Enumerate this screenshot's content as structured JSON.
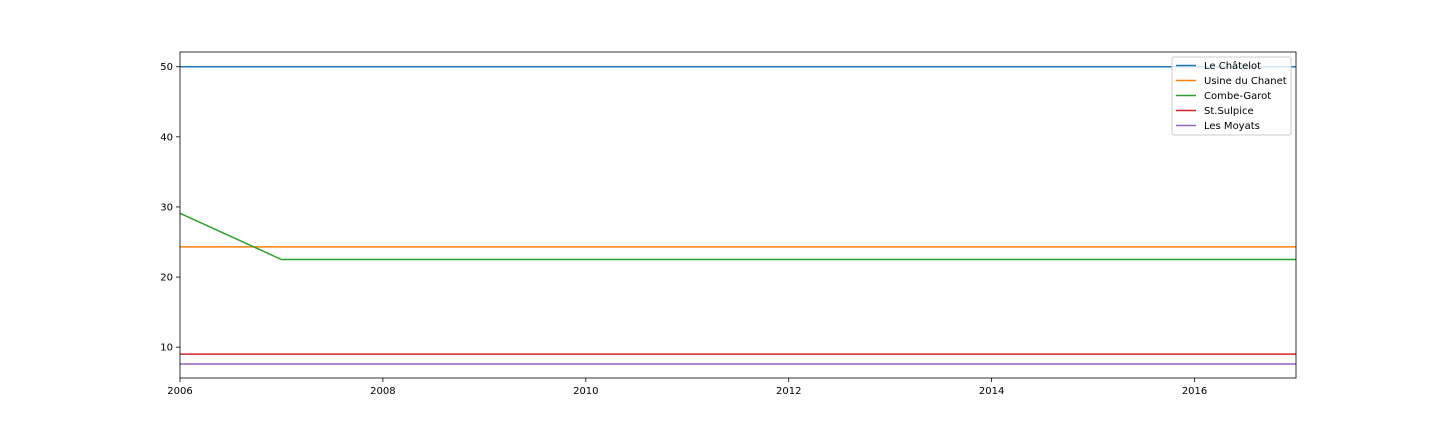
{
  "chart_data": {
    "type": "line",
    "x_ticks": [
      2006,
      2008,
      2010,
      2012,
      2014,
      2016
    ],
    "y_ticks": [
      10,
      20,
      30,
      40,
      50
    ],
    "xlim": [
      2006,
      2017
    ],
    "ylim": [
      5.6,
      52.1
    ],
    "grid": false,
    "legend_position": "top-right",
    "series": [
      {
        "name": "Le Châtelot",
        "color": "#1f77b4",
        "x": [
          2006,
          2017
        ],
        "y": [
          50,
          50
        ]
      },
      {
        "name": "Usine du Chanet",
        "color": "#ff7f0e",
        "x": [
          2006,
          2017
        ],
        "y": [
          24.3,
          24.3
        ]
      },
      {
        "name": "Combe-Garot",
        "color": "#2ca02c",
        "x": [
          2006,
          2007,
          2017
        ],
        "y": [
          29.1,
          22.5,
          22.5
        ]
      },
      {
        "name": "St.Sulpice",
        "color": "#d62728",
        "x": [
          2006,
          2017
        ],
        "y": [
          9,
          9
        ]
      },
      {
        "name": "Les Moyats",
        "color": "#9467bd",
        "x": [
          2006,
          2017
        ],
        "y": [
          7.6,
          7.6
        ]
      }
    ]
  }
}
